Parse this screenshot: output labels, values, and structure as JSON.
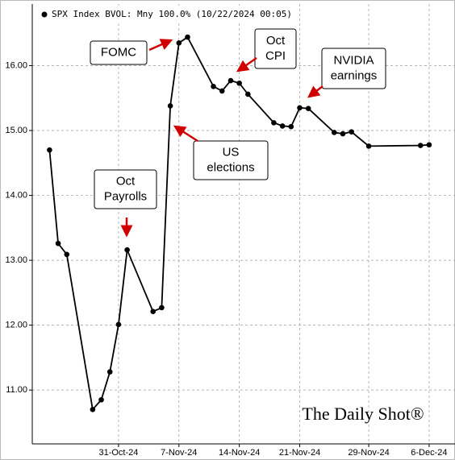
{
  "chart_data": {
    "type": "line",
    "legend": "SPX Index BVOL: Mny 100.0% (10/22/2024 00:05)",
    "brand": "The Daily Shot®",
    "x": [
      "2024-10-23",
      "2024-10-24",
      "2024-10-25",
      "2024-10-28",
      "2024-10-29",
      "2024-10-30",
      "2024-10-31",
      "2024-11-01",
      "2024-11-04",
      "2024-11-05",
      "2024-11-06",
      "2024-11-07",
      "2024-11-08",
      "2024-11-11",
      "2024-11-12",
      "2024-11-13",
      "2024-11-14",
      "2024-11-15",
      "2024-11-18",
      "2024-11-19",
      "2024-11-20",
      "2024-11-21",
      "2024-11-22",
      "2024-11-25",
      "2024-11-26",
      "2024-11-27",
      "2024-11-29",
      "2024-12-05",
      "2024-12-06"
    ],
    "series": [
      {
        "name": "SPX Index BVOL",
        "color": "#000000",
        "values": [
          14.7,
          13.26,
          13.09,
          10.7,
          10.85,
          11.28,
          12.01,
          13.16,
          12.21,
          12.27,
          15.38,
          16.35,
          16.44,
          15.68,
          15.61,
          15.77,
          15.73,
          15.56,
          15.12,
          15.07,
          15.06,
          15.35,
          15.34,
          14.97,
          14.95,
          14.98,
          14.76,
          14.77,
          14.78
        ]
      }
    ],
    "xlim": [
      "2024-10-21",
      "2024-12-09"
    ],
    "xticks": [
      {
        "value": "2024-10-31",
        "label": "31-Oct-24"
      },
      {
        "value": "2024-11-07",
        "label": "7-Nov-24"
      },
      {
        "value": "2024-11-14",
        "label": "14-Nov-24"
      },
      {
        "value": "2024-11-21",
        "label": "21-Nov-24"
      },
      {
        "value": "2024-11-29",
        "label": "29-Nov-24"
      },
      {
        "value": "2024-12-06",
        "label": "6-Dec-24"
      }
    ],
    "ylim": [
      10.17,
      16.95
    ],
    "yticks": [
      {
        "value": 11,
        "label": "11.00"
      },
      {
        "value": 12,
        "label": "12.00"
      },
      {
        "value": 13,
        "label": "13.00"
      },
      {
        "value": 14,
        "label": "14.00"
      },
      {
        "value": 15,
        "label": "15.00"
      },
      {
        "value": 16,
        "label": "16.00"
      }
    ],
    "grid": true,
    "annotations": [
      [
        "FOMC"
      ],
      [
        "Oct",
        "CPI"
      ],
      [
        "NVIDIA",
        "earnings"
      ],
      [
        "US",
        "elections"
      ],
      [
        "Oct",
        "Payrolls"
      ]
    ]
  }
}
